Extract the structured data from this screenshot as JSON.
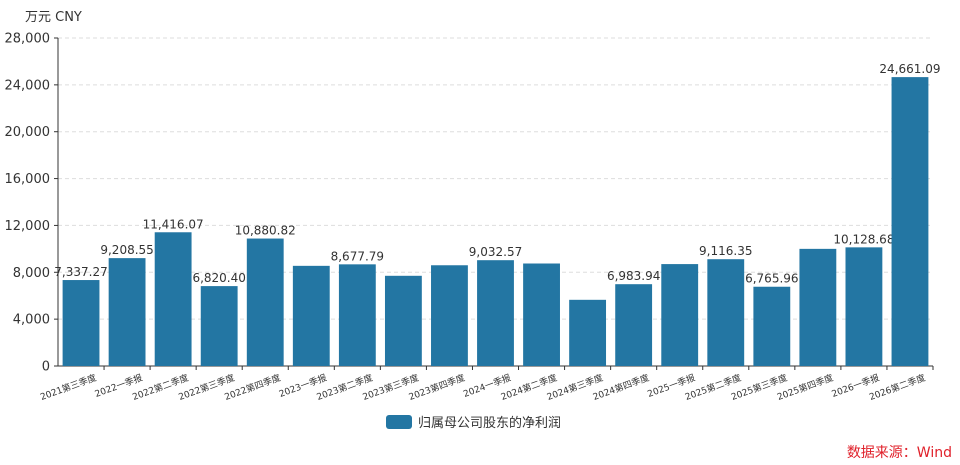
{
  "unit_label": "万元  CNY",
  "source_label": "数据来源：Wind",
  "colors": {
    "bar": "#2376a3",
    "source": "#e0202a",
    "grid": "#dddddd",
    "axis": "#333333"
  },
  "chart_data": {
    "type": "bar",
    "title": "",
    "xlabel": "",
    "ylabel": "万元  CNY",
    "ylim": [
      0,
      28000
    ],
    "yticks": [
      0,
      4000,
      8000,
      12000,
      16000,
      20000,
      24000,
      28000
    ],
    "ytick_labels": [
      "0",
      "4,000",
      "8,000",
      "12,000",
      "16,000",
      "20,000",
      "24,000",
      "28,000"
    ],
    "grid": true,
    "legend_position": "bottom",
    "categories": [
      "2021第三季度",
      "2022一季报",
      "2022第二季度",
      "2022第三季度",
      "2022第四季度",
      "2023一季报",
      "2023第二季度",
      "2023第三季度",
      "2023第四季度",
      "2024一季报",
      "2024第二季度",
      "2024第三季度",
      "2024第四季度",
      "2025一季报",
      "2025第二季度",
      "2025第三季度",
      "2025第四季度",
      "2026一季报",
      "2026第二季度"
    ],
    "series": [
      {
        "name": "归属母公司股东的净利润",
        "values": [
          7337.27,
          9208.55,
          11416.07,
          6820.4,
          10880.82,
          8550,
          8677.79,
          7700,
          8600,
          9032.57,
          8750,
          5650,
          6983.94,
          8700,
          9116.35,
          6765.96,
          10000,
          10128.68,
          24661.09
        ],
        "data_labels": [
          "7,337.27",
          "9,208.55",
          "11,416.07",
          "6,820.40",
          "10,880.82",
          "",
          "8,677.79",
          "",
          "",
          "9,032.57",
          "",
          "",
          "6,983.94",
          "",
          "9,116.35",
          "6,765.96",
          "",
          "10,128.68",
          "24,661.09"
        ]
      }
    ]
  }
}
